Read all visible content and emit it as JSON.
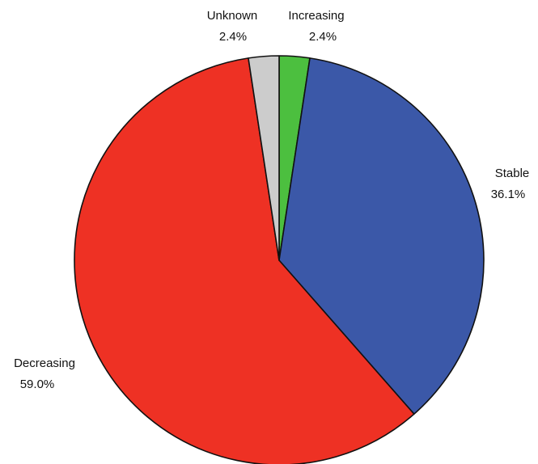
{
  "chart_data": {
    "type": "pie",
    "title": "",
    "start_angle_deg": 0,
    "direction": "clockwise",
    "slices": [
      {
        "label": "Increasing",
        "value": 2.4,
        "value_label": "2.4%",
        "color": "#4cbf3f"
      },
      {
        "label": "Stable",
        "value": 36.1,
        "value_label": "36.1%",
        "color": "#3b58a8"
      },
      {
        "label": "Decreasing",
        "value": 59.0,
        "value_label": "59.0%",
        "color": "#ee3124"
      },
      {
        "label": "Unknown",
        "value": 2.4,
        "value_label": "2.4%",
        "color": "#cccccc"
      }
    ]
  }
}
